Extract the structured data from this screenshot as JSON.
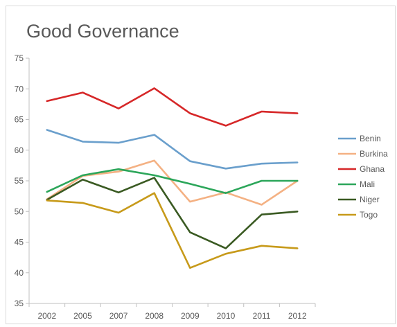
{
  "chart_data": {
    "type": "line",
    "title": "Good Governance",
    "xlabel": "",
    "ylabel": "",
    "categories": [
      "2002",
      "2005",
      "2007",
      "2008",
      "2009",
      "2010",
      "2011",
      "2012"
    ],
    "ylim": [
      35,
      75
    ],
    "yticks": [
      35,
      40,
      45,
      50,
      55,
      60,
      65,
      70,
      75
    ],
    "grid": false,
    "legend_position": "right",
    "series": [
      {
        "name": "Benin",
        "color": "#6a9fcc",
        "values": [
          63.3,
          61.4,
          61.2,
          62.5,
          58.2,
          57.0,
          57.8,
          58.0
        ]
      },
      {
        "name": "Burkina",
        "color": "#f4b183",
        "values": [
          52.0,
          55.8,
          56.5,
          58.3,
          51.6,
          53.1,
          51.1,
          55.0
        ]
      },
      {
        "name": "Ghana",
        "color": "#d62728",
        "values": [
          68.0,
          69.4,
          66.8,
          70.1,
          66.0,
          64.0,
          66.3,
          66.0
        ]
      },
      {
        "name": "Mali",
        "color": "#2ca65a",
        "values": [
          53.2,
          55.9,
          56.9,
          55.9,
          54.5,
          53.0,
          55.0,
          55.0
        ]
      },
      {
        "name": "Niger",
        "color": "#3a5a22",
        "values": [
          51.9,
          55.2,
          53.1,
          55.5,
          46.6,
          44.0,
          49.5,
          50.0
        ]
      },
      {
        "name": "Togo",
        "color": "#c79a1a",
        "values": [
          51.8,
          51.4,
          49.8,
          53.0,
          40.8,
          43.1,
          44.4,
          44.0
        ]
      }
    ]
  }
}
